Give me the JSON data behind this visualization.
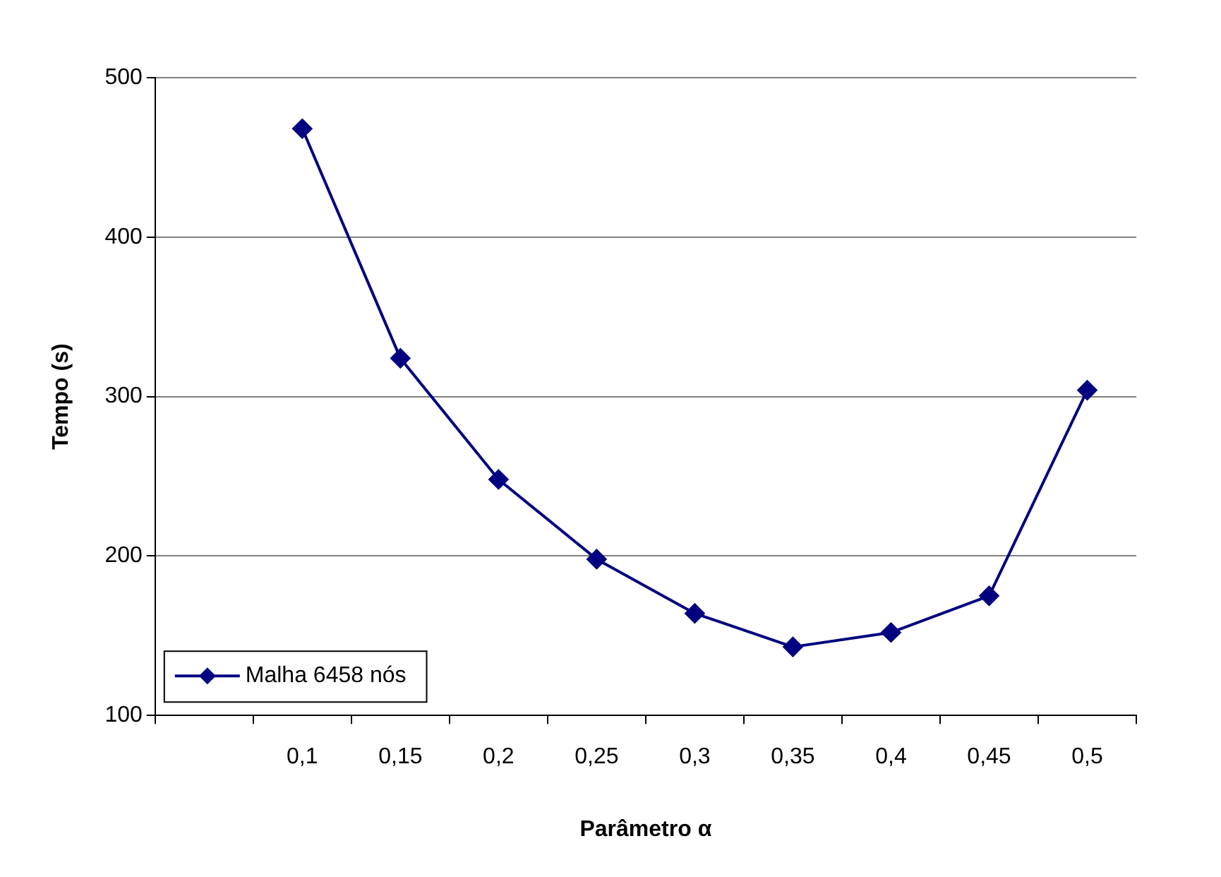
{
  "chart_data": {
    "type": "line",
    "xlabel": "Parâmetro α",
    "ylabel": "Tempo (s)",
    "categories": [
      null,
      "0,1",
      "0,15",
      "0,2",
      "0,25",
      "0,3",
      "0,35",
      "0,4",
      "0,45",
      "0,5"
    ],
    "series": [
      {
        "name": "Malha 6458 nós",
        "color": "#000080",
        "values": [
          null,
          468,
          324,
          248,
          198,
          164,
          143,
          152,
          175,
          304
        ]
      }
    ],
    "ylim": [
      100,
      500
    ],
    "yticks": [
      100,
      200,
      300,
      400,
      500
    ],
    "grid": "y",
    "legend": "bottom left",
    "marker": "diamond",
    "line_style": "solid"
  }
}
